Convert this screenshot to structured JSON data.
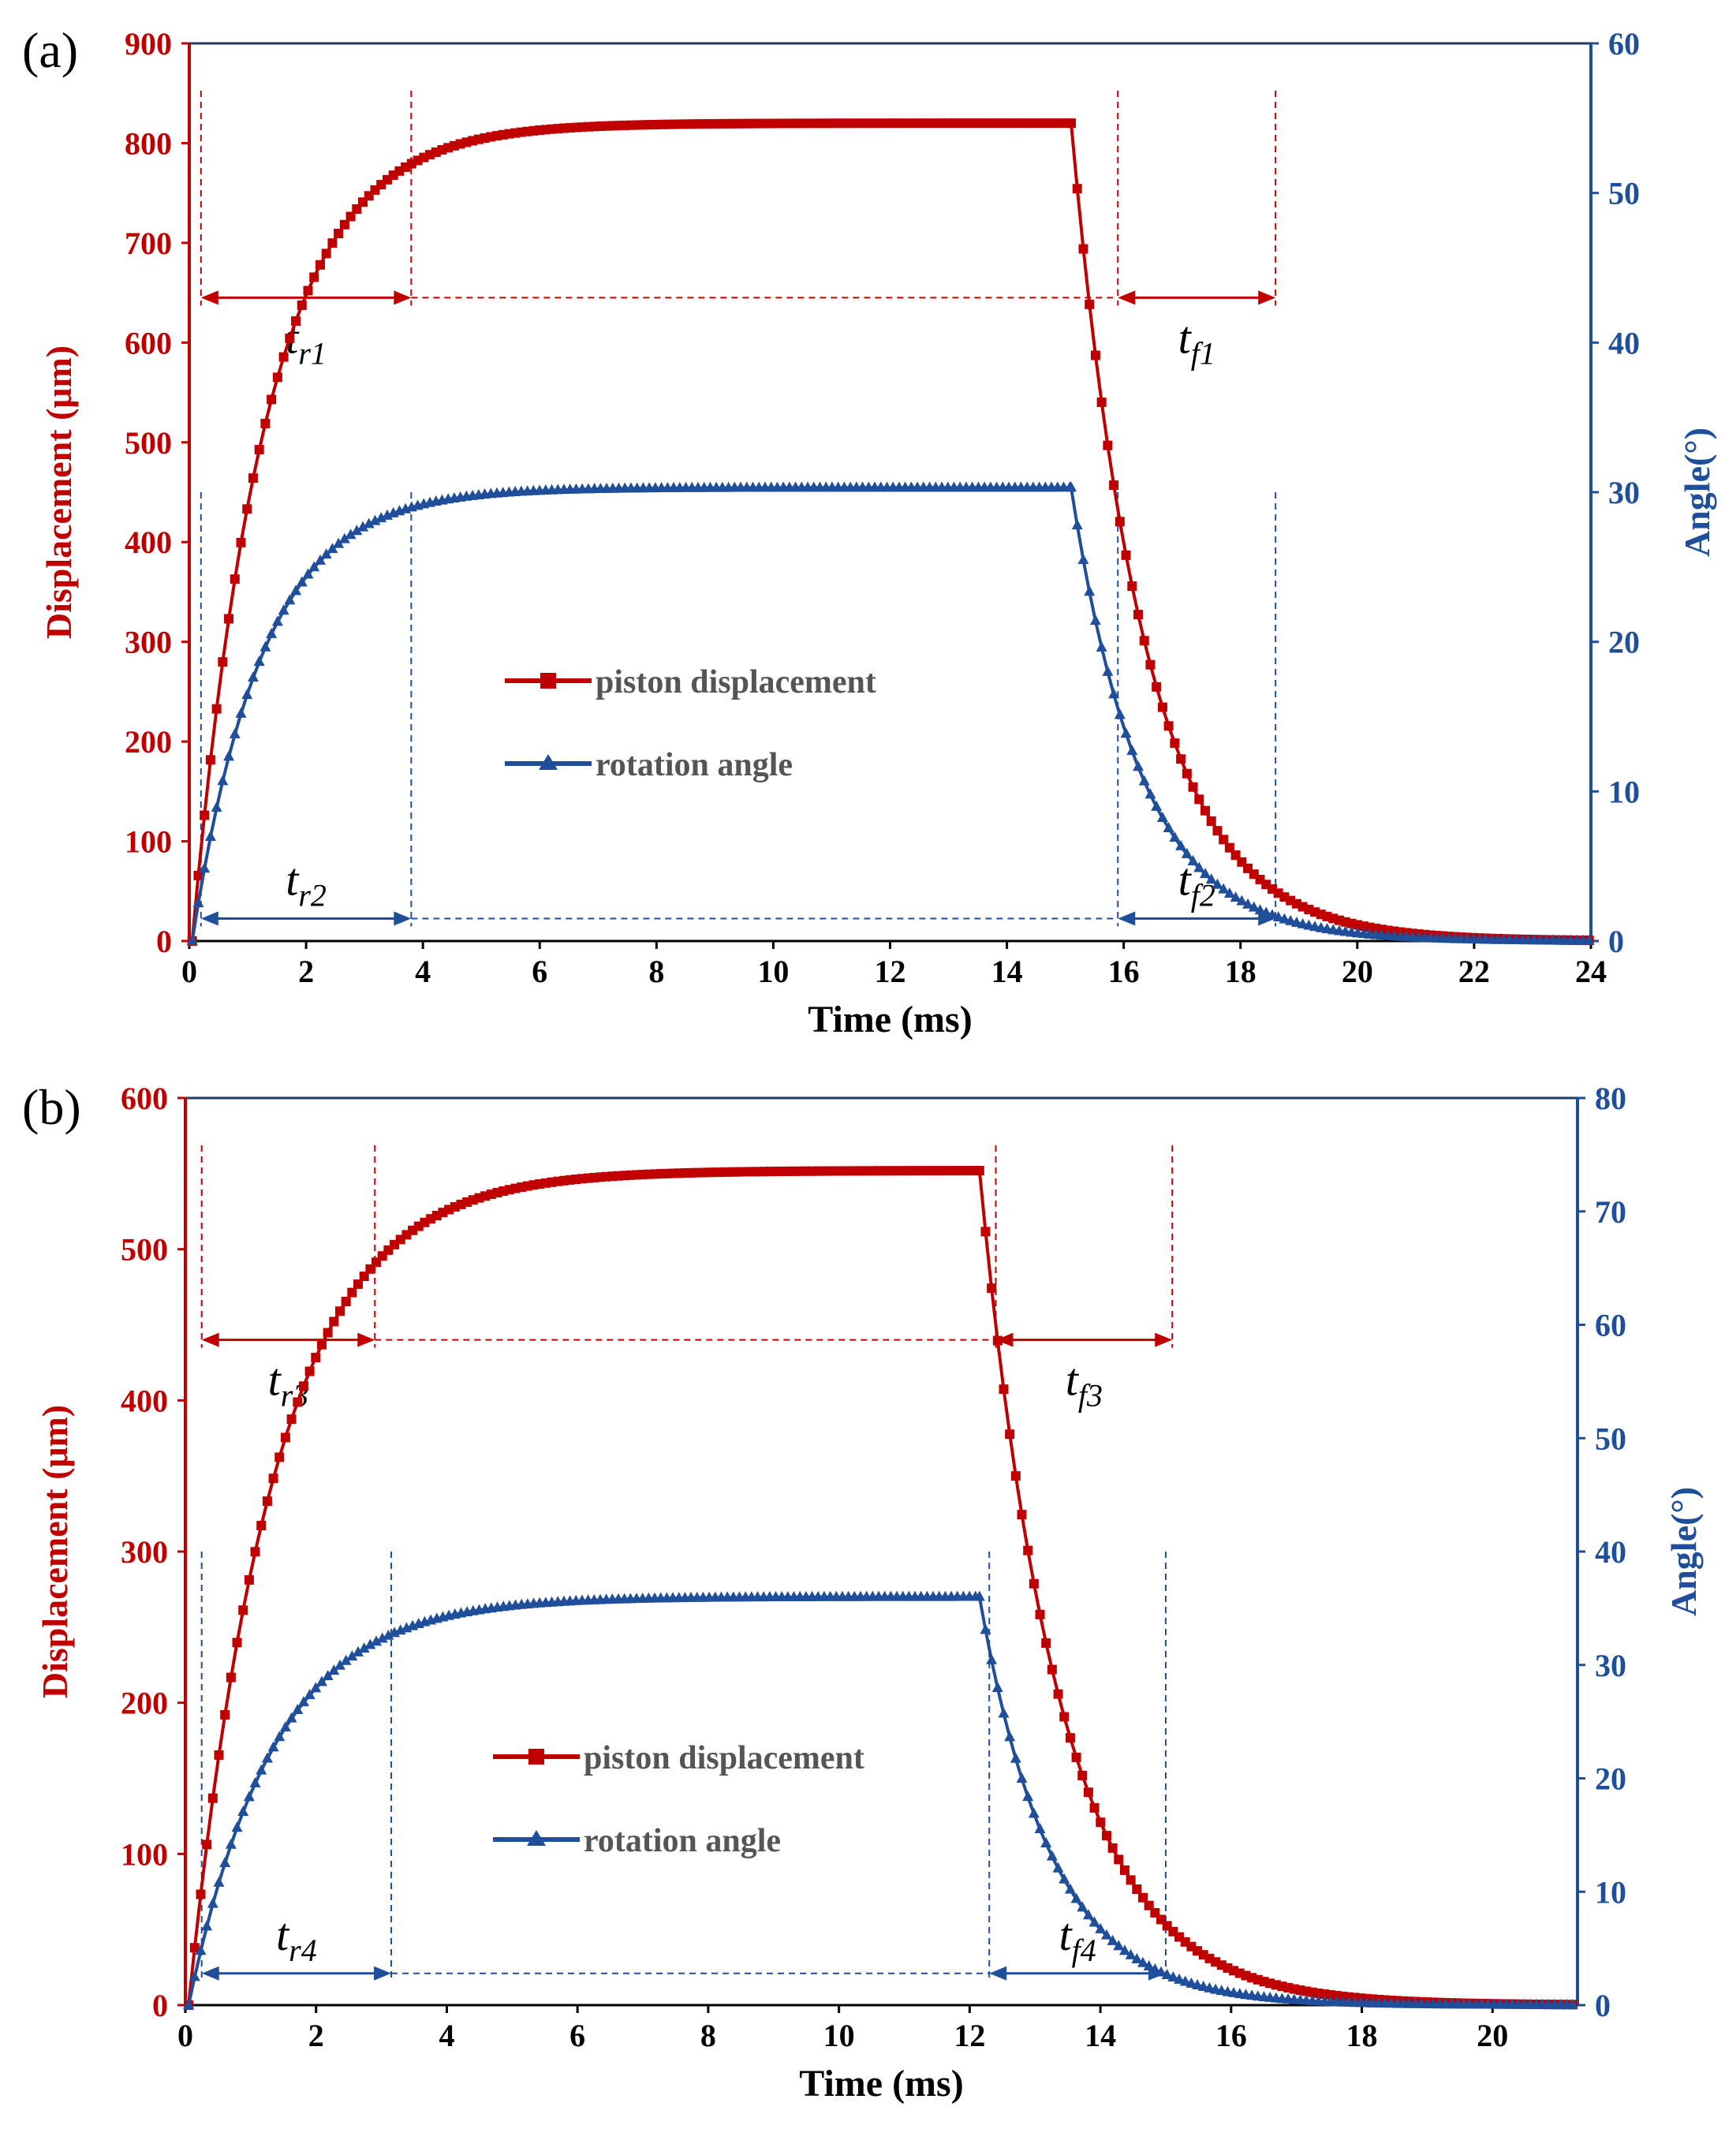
{
  "colors": {
    "red": "#c00000",
    "blue": "#1f4e9a",
    "axis": "#000000",
    "frame": "#1f3864"
  },
  "chart_data": [
    {
      "panel_label": "(a)",
      "type": "line",
      "xlabel": "Time (ms)",
      "ylabel_left": "Displacement (μm)",
      "ylabel_right": "Angle(°)",
      "xlim": [
        0,
        24
      ],
      "ylim_left": [
        0,
        900
      ],
      "ylim_right": [
        0,
        60
      ],
      "xticks": [
        "0",
        "2",
        "4",
        "6",
        "8",
        "10",
        "12",
        "14",
        "16",
        "18",
        "20",
        "22",
        "24"
      ],
      "yticks_left": [
        "0",
        "100",
        "200",
        "300",
        "400",
        "500",
        "600",
        "700",
        "800",
        "900"
      ],
      "yticks_right": [
        "0",
        "10",
        "20",
        "30",
        "40",
        "50",
        "60"
      ],
      "legend": [
        "piston displacement",
        "rotation angle"
      ],
      "series": [
        {
          "name": "piston displacement",
          "axis": "left",
          "marker": "square",
          "color": "#c00000",
          "rise": {
            "t0": 0.05,
            "t_end": 15.1,
            "steady": 820,
            "tau": 1.25
          },
          "fall": {
            "t0": 15.1,
            "t_end": 24,
            "tau": 1.25
          }
        },
        {
          "name": "rotation angle",
          "axis": "right",
          "marker": "triangle",
          "color": "#1f4e9a",
          "rise": {
            "t0": 0.05,
            "t_end": 15.1,
            "steady": 30.3,
            "tau": 1.2
          },
          "fall": {
            "t0": 15.1,
            "t_end": 24,
            "tau": 1.2
          }
        }
      ],
      "annotations": [
        {
          "base": "t",
          "sub": "r1",
          "color": "#c00000",
          "x_from": 0.2,
          "x_to": 3.8,
          "x_end": 15.9,
          "y": 645,
          "axis": "left"
        },
        {
          "base": "t",
          "sub": "f1",
          "color": "#c00000",
          "x_from": 15.9,
          "x_to": 18.6,
          "x_end": 18.6,
          "y": 645,
          "axis": "left"
        },
        {
          "base": "t",
          "sub": "r2",
          "color": "#1f4e9a",
          "x_from": 0.2,
          "x_to": 3.8,
          "x_end": 15.9,
          "y": 1.5,
          "axis": "right"
        },
        {
          "base": "t",
          "sub": "f2",
          "color": "#1f4e9a",
          "x_from": 15.9,
          "x_to": 18.6,
          "x_end": 18.6,
          "y": 1.5,
          "axis": "right"
        }
      ]
    },
    {
      "panel_label": "(b)",
      "type": "line",
      "xlabel": "Time (ms)",
      "ylabel_left": "Displacement (μm)",
      "ylabel_right": "Angle(°)",
      "xlim": [
        0,
        21.3
      ],
      "ylim_left": [
        0,
        600
      ],
      "ylim_right": [
        0,
        80
      ],
      "xticks": [
        "0",
        "2",
        "4",
        "6",
        "8",
        "10",
        "12",
        "14",
        "16",
        "18",
        "20"
      ],
      "yticks_left": [
        "0",
        "100",
        "200",
        "300",
        "400",
        "500",
        "600"
      ],
      "yticks_right": [
        "0",
        "10",
        "20",
        "30",
        "40",
        "50",
        "60",
        "70",
        "80"
      ],
      "legend": [
        "piston displacement",
        "rotation angle"
      ],
      "series": [
        {
          "name": "piston displacement",
          "axis": "left",
          "marker": "square",
          "color": "#c00000",
          "rise": {
            "t0": 0.05,
            "t_end": 12.15,
            "steady": 552,
            "tau": 1.3
          },
          "fall": {
            "t0": 12.15,
            "t_end": 21.3,
            "tau": 1.22
          }
        },
        {
          "name": "rotation angle",
          "axis": "right",
          "marker": "triangle",
          "color": "#1f4e9a",
          "rise": {
            "t0": 0.05,
            "t_end": 12.15,
            "steady": 36,
            "tau": 1.3
          },
          "fall": {
            "t0": 12.15,
            "t_end": 21.3,
            "tau": 1.1
          }
        }
      ],
      "annotations": [
        {
          "base": "t",
          "sub": "r3",
          "color": "#c00000",
          "x_from": 0.25,
          "x_to": 2.9,
          "x_end": 12.4,
          "y": 440,
          "axis": "left"
        },
        {
          "base": "t",
          "sub": "f3",
          "color": "#c00000",
          "x_from": 12.4,
          "x_to": 15.1,
          "x_end": 15.1,
          "y": 440,
          "axis": "left"
        },
        {
          "base": "t",
          "sub": "r4",
          "color": "#1f4e9a",
          "x_from": 0.25,
          "x_to": 3.15,
          "x_end": 12.3,
          "y": 2.8,
          "axis": "right"
        },
        {
          "base": "t",
          "sub": "f4",
          "color": "#1f4e9a",
          "x_from": 12.3,
          "x_to": 15.0,
          "x_end": 15.0,
          "y": 2.8,
          "axis": "right"
        }
      ]
    }
  ]
}
